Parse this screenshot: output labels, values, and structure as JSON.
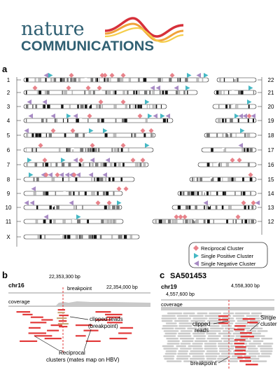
{
  "logo": {
    "line1": "nature",
    "line2": "COMMUNICATIONS"
  },
  "panel_a": {
    "label": "a",
    "left_chromosomes": [
      "1",
      "2",
      "3",
      "4",
      "5",
      "6",
      "7",
      "8",
      "9",
      "10",
      "11",
      "X"
    ],
    "right_chromosomes": [
      "22",
      "21",
      "20",
      "19",
      "18",
      "17",
      "16",
      "15",
      "14",
      "13",
      "12"
    ],
    "legend": [
      {
        "label": "Reciprocal Cluster",
        "color": "#e8828a",
        "shape": "diamond"
      },
      {
        "label": "Single Positive Cluster",
        "color": "#45b8c4",
        "shape": "triangle-right"
      },
      {
        "label": "Single Negative Cluster",
        "color": "#a88bc4",
        "shape": "triangle-left"
      }
    ]
  },
  "panel_b": {
    "label": "b",
    "chrom": "chr16",
    "tick1": "22,353,300 bp",
    "tick2": "22,354,000 bp",
    "breakpoint": "breakpoint",
    "coverage": "coverage",
    "clipped": "clipped reads",
    "clipped_sub": "(breakpoint)",
    "recip1": "Reciprocal",
    "recip2": "clusters (mates map on HBV)"
  },
  "panel_c": {
    "label": "c",
    "sample": "SA501453",
    "chrom": "chr19",
    "tick1": "4,557,600 bp",
    "tick2": "4,558,300 bp",
    "coverage": "coverage",
    "clipped1": "clipped",
    "clipped2": "reads",
    "single1": "Single",
    "single2": "cluster",
    "breakpoint": "breakpoint"
  },
  "colors": {
    "logo_blue": "#2f5f72",
    "red": "#e23b3b",
    "gray": "#c9c9c9"
  }
}
